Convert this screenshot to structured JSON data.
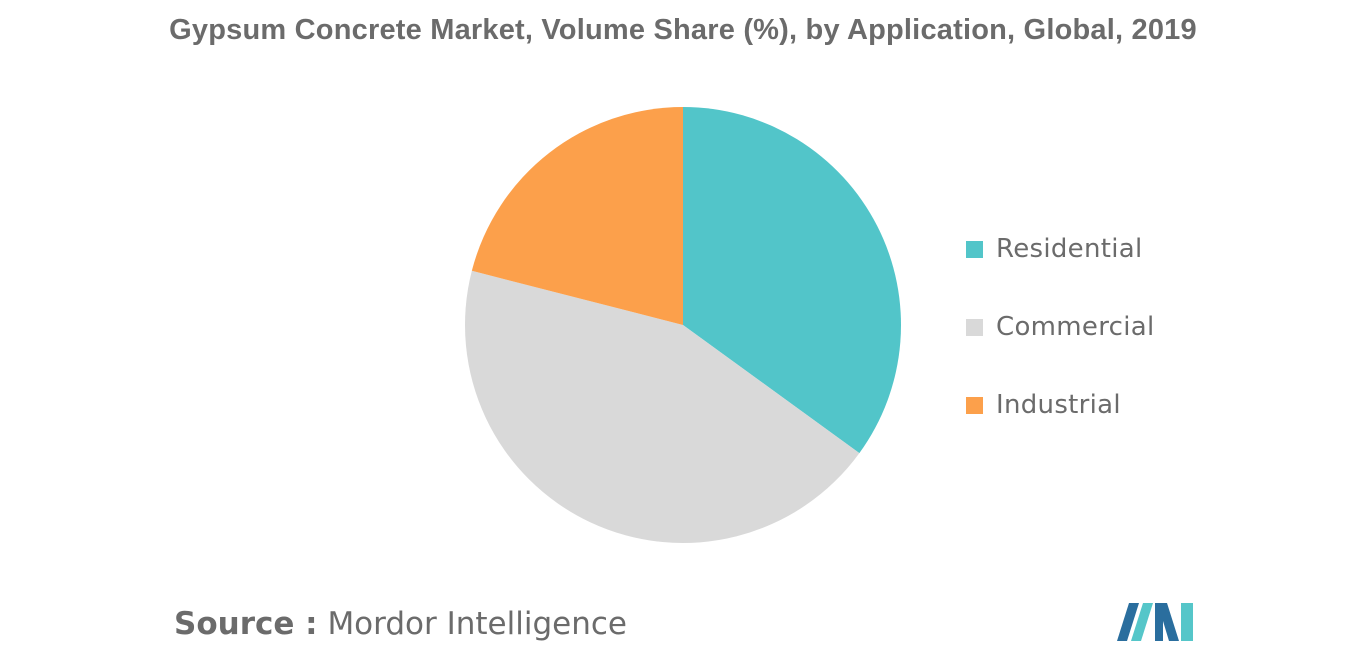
{
  "chart_data": {
    "type": "pie",
    "title": "Gypsum Concrete Market, Volume Share (%), by Application, Global, 2019",
    "categories": [
      "Residential",
      "Commercial",
      "Industrial"
    ],
    "values": [
      35,
      44,
      21
    ],
    "colors": [
      "#52c5c9",
      "#d9d9d9",
      "#fca04b"
    ],
    "legend_position": "right"
  },
  "source": {
    "label": "Source :",
    "text": "Mordor Intelligence"
  },
  "logo": {
    "icon": "mordor-intelligence-logo",
    "colors": [
      "#2a6e9e",
      "#55c6c9"
    ]
  }
}
